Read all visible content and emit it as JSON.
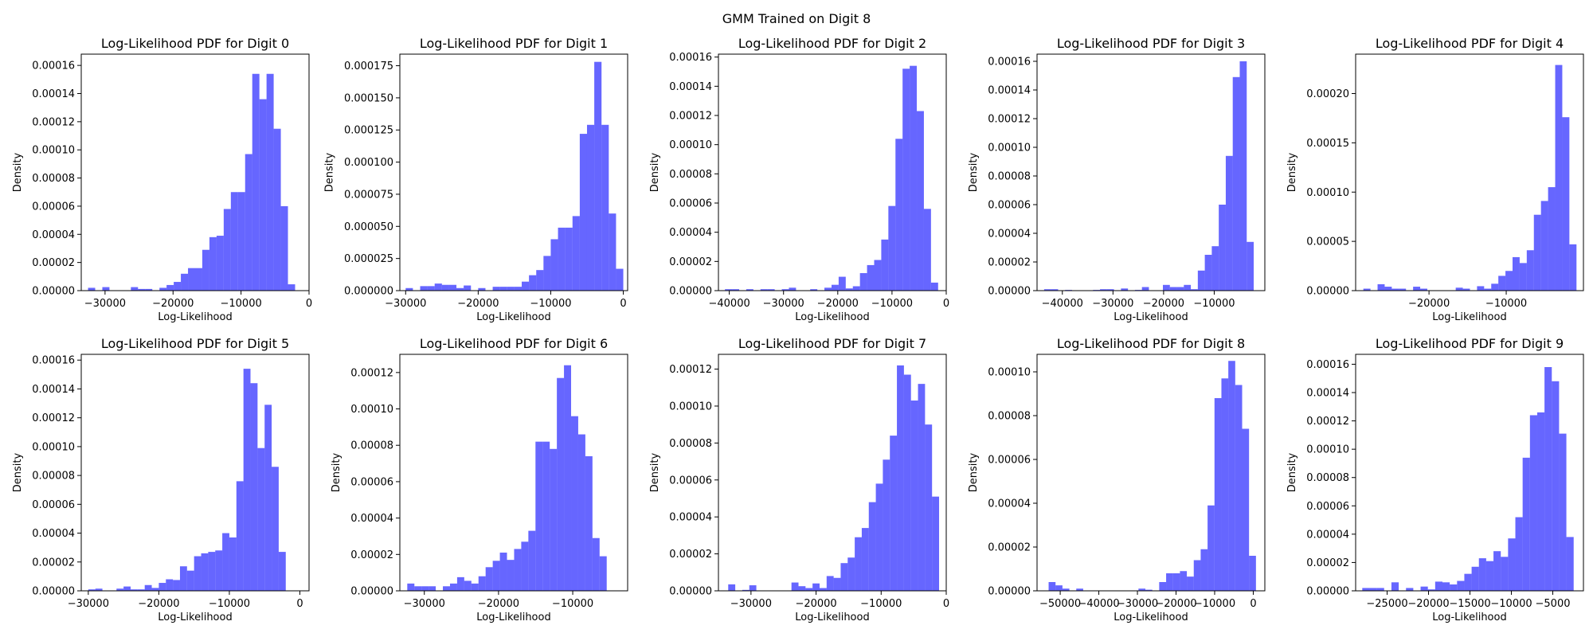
{
  "figure": {
    "suptitle": "GMM Trained on Digit 8"
  },
  "colors": {
    "bar": "#0000ff",
    "bar_opacity": 0.6,
    "axes": "#000000"
  },
  "chart_data": [
    {
      "type": "bar",
      "title": "Log-Likelihood PDF for Digit 0",
      "xlabel": "Log-Likelihood",
      "ylabel": "Density",
      "xlim": [
        -33500,
        0
      ],
      "ylim": [
        0,
        0.000168
      ],
      "bins": {
        "start": -32500,
        "width": 1050,
        "values": [
          2e-06,
          0,
          2.5e-06,
          0,
          0,
          0,
          2.5e-06,
          1.2e-06,
          1.2e-06,
          0,
          2e-06,
          4e-06,
          6.2e-06,
          1.2e-05,
          1.6e-05,
          1.6e-05,
          2.9e-05,
          3.8e-05,
          3.9e-05,
          5.8e-05,
          7e-05,
          7e-05,
          9.7e-05,
          0.000154,
          0.000136,
          0.000154,
          0.000115,
          6e-05,
          4.5e-06
        ]
      },
      "xticks": [
        -30000,
        -20000,
        -10000,
        0
      ],
      "xtick_labels": [
        "−30000",
        "−20000",
        "−10000",
        "0"
      ],
      "yticks": [
        0,
        2e-05,
        4e-05,
        6e-05,
        8e-05,
        0.0001,
        0.00012,
        0.00014,
        0.00016
      ],
      "ytick_labels": [
        "0.00000",
        "0.00002",
        "0.00004",
        "0.00006",
        "0.00008",
        "0.00010",
        "0.00012",
        "0.00014",
        "0.00016"
      ]
    },
    {
      "type": "bar",
      "title": "Log-Likelihood PDF for Digit 1",
      "xlabel": "Log-Likelihood",
      "ylabel": "Density",
      "xlim": [
        -30800,
        600
      ],
      "ylim": [
        0,
        0.000184
      ],
      "bins": {
        "start": -30000,
        "width": 1000,
        "values": [
          2e-06,
          0,
          3.5e-06,
          3.5e-06,
          5.5e-06,
          4.5e-06,
          4.5e-06,
          2e-06,
          4e-06,
          0,
          2e-06,
          0,
          3e-06,
          3e-06,
          3e-06,
          3e-06,
          7e-06,
          1.2e-05,
          1.6e-05,
          2.7e-05,
          4e-05,
          4.9e-05,
          4.9e-05,
          5.8e-05,
          0.000122,
          0.000129,
          0.000178,
          0.000129,
          6e-05,
          1.7e-05
        ]
      },
      "xticks": [
        -30000,
        -20000,
        -10000,
        0
      ],
      "xtick_labels": [
        "−30000",
        "−20000",
        "−10000",
        "0"
      ],
      "yticks": [
        0,
        2.5e-05,
        5e-05,
        7.5e-05,
        0.0001,
        0.000125,
        0.00015,
        0.000175
      ],
      "ytick_labels": [
        "0.000000",
        "0.000025",
        "0.000050",
        "0.000075",
        "0.000100",
        "0.000125",
        "0.000150",
        "0.000175"
      ]
    },
    {
      "type": "bar",
      "title": "Log-Likelihood PDF for Digit 2",
      "xlabel": "Log-Likelihood",
      "ylabel": "Density",
      "xlim": [
        -42000,
        0
      ],
      "ylim": [
        0,
        0.000162
      ],
      "bins": {
        "start": -40800,
        "width": 1310,
        "values": [
          1e-06,
          1e-06,
          0,
          1e-06,
          0,
          1e-06,
          1e-06,
          0,
          1e-06,
          2e-06,
          0,
          0,
          1e-06,
          0,
          2e-06,
          4e-06,
          9.5e-06,
          1.5e-06,
          3e-06,
          1.2e-05,
          1.75e-05,
          2.1e-05,
          3.5e-05,
          5.8e-05,
          0.000104,
          0.000152,
          0.000154,
          0.000123,
          5.6e-05,
          5.5e-06
        ]
      },
      "xticks": [
        -40000,
        -30000,
        -20000,
        -10000,
        0
      ],
      "xtick_labels": [
        "−40000",
        "−30000",
        "−20000",
        "−10000",
        "0"
      ],
      "yticks": [
        0,
        2e-05,
        4e-05,
        6e-05,
        8e-05,
        0.0001,
        0.00012,
        0.00014,
        0.00016
      ],
      "ytick_labels": [
        "0.00000",
        "0.00002",
        "0.00004",
        "0.00006",
        "0.00008",
        "0.00010",
        "0.00012",
        "0.00014",
        "0.00016"
      ]
    },
    {
      "type": "bar",
      "title": "Log-Likelihood PDF for Digit 3",
      "xlabel": "Log-Likelihood",
      "ylabel": "Density",
      "xlim": [
        -45000,
        0
      ],
      "ylim": [
        0,
        0.000165
      ],
      "bins": {
        "start": -43600,
        "width": 1380,
        "values": [
          1e-06,
          1e-06,
          0,
          5e-07,
          0,
          0,
          0,
          5e-07,
          1e-06,
          1e-06,
          0,
          1.5e-06,
          0,
          5e-07,
          2.5e-06,
          0,
          0,
          4e-06,
          2.5e-06,
          2.5e-06,
          4e-06,
          1e-06,
          1.4e-05,
          2.5e-05,
          3.1e-05,
          6e-05,
          9.4e-05,
          0.000149,
          0.00016,
          3.4e-05
        ]
      },
      "xticks": [
        -40000,
        -30000,
        -20000,
        -10000
      ],
      "xtick_labels": [
        "−40000",
        "−30000",
        "−20000",
        "−10000"
      ],
      "yticks": [
        0,
        2e-05,
        4e-05,
        6e-05,
        8e-05,
        0.0001,
        0.00012,
        0.00014,
        0.00016
      ],
      "ytick_labels": [
        "0.00000",
        "0.00002",
        "0.00004",
        "0.00006",
        "0.00008",
        "0.00010",
        "0.00012",
        "0.00014",
        "0.00016"
      ]
    },
    {
      "type": "bar",
      "title": "Log-Likelihood PDF for Digit 4",
      "xlabel": "Log-Likelihood",
      "ylabel": "Density",
      "xlim": [
        -29500,
        0
      ],
      "ylim": [
        0,
        0.00024
      ],
      "bins": {
        "start": -28500,
        "width": 920,
        "values": [
          2e-06,
          0,
          6.5e-06,
          4e-06,
          2e-06,
          2e-06,
          0,
          4e-06,
          2e-06,
          0,
          0,
          0,
          0,
          3e-06,
          2e-06,
          0,
          4.5e-06,
          2e-06,
          7e-06,
          1.5e-05,
          2e-05,
          3.4e-05,
          2.8e-05,
          4.1e-05,
          7.7e-05,
          9.1e-05,
          0.000105,
          0.000229,
          0.000176,
          4.7e-05
        ]
      },
      "xticks": [
        -20000,
        -10000
      ],
      "xtick_labels": [
        "−20000",
        "−10000"
      ],
      "yticks": [
        0,
        5e-05,
        0.0001,
        0.00015,
        0.0002
      ],
      "ytick_labels": [
        "0.00000",
        "0.00005",
        "0.00010",
        "0.00015",
        "0.00020"
      ]
    },
    {
      "type": "bar",
      "title": "Log-Likelihood PDF for Digit 5",
      "xlabel": "Log-Likelihood",
      "ylabel": "Density",
      "xlim": [
        -31000,
        1300
      ],
      "ylim": [
        0,
        0.000164
      ],
      "bins": {
        "start": -30000,
        "width": 1000,
        "values": [
          1e-06,
          1.5e-06,
          0,
          0,
          1.5e-06,
          3e-06,
          1e-06,
          1e-06,
          4e-06,
          2e-06,
          5.5e-06,
          8e-06,
          7.5e-06,
          1.7e-05,
          1.4e-05,
          2.4e-05,
          2.6e-05,
          2.7e-05,
          2.8e-05,
          4e-05,
          3.7e-05,
          7.6e-05,
          0.000154,
          0.000144,
          9.9e-05,
          0.000129,
          8.6e-05,
          2.7e-05,
          0,
          0
        ]
      },
      "xticks": [
        -30000,
        -20000,
        -10000,
        0
      ],
      "xtick_labels": [
        "−30000",
        "−20000",
        "−10000",
        "0"
      ],
      "yticks": [
        0,
        2e-05,
        4e-05,
        6e-05,
        8e-05,
        0.0001,
        0.00012,
        0.00014,
        0.00016
      ],
      "ytick_labels": [
        "0.00000",
        "0.00002",
        "0.00004",
        "0.00006",
        "0.00008",
        "0.00010",
        "0.00012",
        "0.00014",
        "0.00016"
      ]
    },
    {
      "type": "bar",
      "title": "Log-Likelihood PDF for Digit 6",
      "xlabel": "Log-Likelihood",
      "ylabel": "Density",
      "xlim": [
        -33300,
        -2600
      ],
      "ylim": [
        0,
        0.00013
      ],
      "bins": {
        "start": -32300,
        "width": 960,
        "values": [
          4e-06,
          2.5e-06,
          2.5e-06,
          2.5e-06,
          0,
          2.5e-06,
          4e-06,
          7.5e-06,
          5.5e-06,
          4e-06,
          8e-06,
          1.3e-05,
          1.65e-05,
          2.1e-05,
          1.7e-05,
          2.3e-05,
          2.7e-05,
          3.3e-05,
          8.2e-05,
          8.2e-05,
          7.8e-05,
          0.000117,
          0.000124,
          9.6e-05,
          8.6e-05,
          7.4e-05,
          2.9e-05,
          1.9e-05,
          0,
          0
        ]
      },
      "xticks": [
        -30000,
        -20000,
        -10000
      ],
      "xtick_labels": [
        "−30000",
        "−20000",
        "−10000"
      ],
      "yticks": [
        0,
        2e-05,
        4e-05,
        6e-05,
        8e-05,
        0.0001,
        0.00012
      ],
      "ytick_labels": [
        "0.00000",
        "0.00002",
        "0.00004",
        "0.00006",
        "0.00008",
        "0.00010",
        "0.00012"
      ]
    },
    {
      "type": "bar",
      "title": "Log-Likelihood PDF for Digit 7",
      "xlabel": "Log-Likelihood",
      "ylabel": "Density",
      "xlim": [
        -35000,
        0
      ],
      "ylim": [
        0,
        0.000128
      ],
      "bins": {
        "start": -33500,
        "width": 1080,
        "values": [
          3.5e-06,
          0,
          5e-07,
          3e-06,
          0,
          0,
          0,
          0,
          0,
          4.5e-06,
          2.5e-06,
          1.5e-06,
          4e-06,
          1.5e-06,
          8e-06,
          7e-06,
          1.5e-05,
          1.8e-05,
          2.9e-05,
          3.4e-05,
          4.8e-05,
          5.8e-05,
          7.1e-05,
          8.4e-05,
          0.000122,
          0.000117,
          0.000103,
          0.000112,
          9e-05,
          5.1e-05
        ]
      },
      "xticks": [
        -30000,
        -20000,
        -10000,
        0
      ],
      "xtick_labels": [
        "−30000",
        "−20000",
        "−10000",
        "0"
      ],
      "yticks": [
        0,
        2e-05,
        4e-05,
        6e-05,
        8e-05,
        0.0001,
        0.00012
      ],
      "ytick_labels": [
        "0.00000",
        "0.00002",
        "0.00004",
        "0.00006",
        "0.00008",
        "0.00010",
        "0.00012"
      ]
    },
    {
      "type": "bar",
      "title": "Log-Likelihood PDF for Digit 8",
      "xlabel": "Log-Likelihood",
      "ylabel": "Density",
      "xlim": [
        -56000,
        3000
      ],
      "ylim": [
        0,
        0.000108
      ],
      "bins": {
        "start": -53000,
        "width": 1790,
        "values": [
          4e-06,
          2.5e-06,
          1e-06,
          0,
          1e-06,
          0,
          0,
          0,
          0,
          0,
          0,
          0,
          0,
          1e-06,
          5e-07,
          0,
          4e-06,
          8e-06,
          8e-06,
          9e-06,
          6.5e-06,
          1.4e-05,
          1.9e-05,
          3.9e-05,
          8.8e-05,
          9.7e-05,
          0.000105,
          9.4e-05,
          7.4e-05,
          1.6e-05
        ]
      },
      "xticks": [
        -50000,
        -40000,
        -30000,
        -20000,
        -10000,
        0
      ],
      "xtick_labels": [
        "−50000",
        "−40000",
        "−30000",
        "−20000",
        "−10000",
        "0"
      ],
      "yticks": [
        0,
        2e-05,
        4e-05,
        6e-05,
        8e-05,
        0.0001
      ],
      "ytick_labels": [
        "0.00000",
        "0.00002",
        "0.00004",
        "0.00006",
        "0.00008",
        "0.00010"
      ]
    },
    {
      "type": "bar",
      "title": "Log-Likelihood PDF for Digit 9",
      "xlabel": "Log-Likelihood",
      "ylabel": "Density",
      "xlim": [
        -28800,
        -1300
      ],
      "ylim": [
        0,
        0.000167
      ],
      "bins": {
        "start": -28000,
        "width": 880,
        "values": [
          2e-06,
          2e-06,
          2e-06,
          0,
          6e-06,
          0,
          2e-06,
          0,
          3e-06,
          1e-06,
          6.5e-06,
          6e-06,
          4.5e-06,
          7e-06,
          1.2e-05,
          1.7e-05,
          2.3e-05,
          2.1e-05,
          2.8e-05,
          2.4e-05,
          3.7e-05,
          5.2e-05,
          9.4e-05,
          0.000124,
          0.000126,
          0.000158,
          0.000148,
          0.000111,
          3.8e-05,
          0
        ]
      },
      "xticks": [
        -25000,
        -20000,
        -15000,
        -10000,
        -5000
      ],
      "xtick_labels": [
        "−25000",
        "−20000",
        "−15000",
        "−10000",
        "−5000"
      ],
      "yticks": [
        0,
        2e-05,
        4e-05,
        6e-05,
        8e-05,
        0.0001,
        0.00012,
        0.00014,
        0.00016
      ],
      "ytick_labels": [
        "0.00000",
        "0.00002",
        "0.00004",
        "0.00006",
        "0.00008",
        "0.00010",
        "0.00012",
        "0.00014",
        "0.00016"
      ]
    }
  ]
}
